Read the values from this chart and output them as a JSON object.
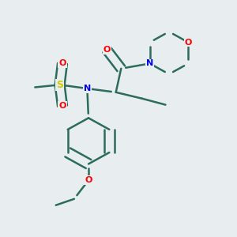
{
  "background_color": "#e8edf0",
  "bond_color": "#2d6b5e",
  "atom_colors": {
    "N": "#0000ee",
    "O": "#ff0000",
    "S": "#cccc00",
    "C": "#2d6b5e"
  },
  "bond_width": 1.8,
  "figsize": [
    3.0,
    3.0
  ],
  "dpi": 100
}
